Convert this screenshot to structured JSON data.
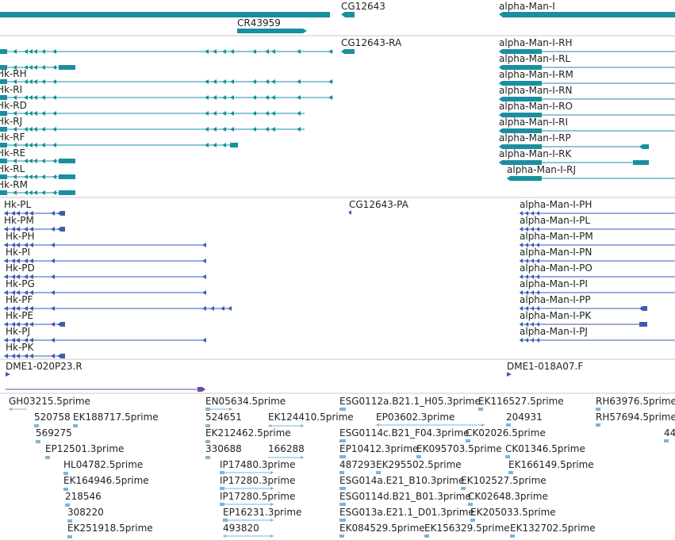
{
  "colors": {
    "gene": "#1a8f9f",
    "transcript": "#1a8f9f",
    "protein": "#3b5bb5",
    "clone": "#6b4aa8",
    "est": "#7fb4d6",
    "divider": "#c8c8c8",
    "text": "#222222"
  },
  "gene_track": {
    "genes": [
      "CG12643",
      "CR43959",
      "alpha-Man-I"
    ]
  },
  "transcript_track": {
    "left_labels": [
      "Hk-RH",
      "Hk-RI",
      "Hk-RD",
      "Hk-RJ",
      "Hk-RF",
      "Hk-RE",
      "Hk-RL",
      "Hk-RM"
    ],
    "center_label": "CG12643-RA",
    "right_labels": [
      "alpha-Man-I-RH",
      "alpha-Man-I-RL",
      "alpha-Man-I-RM",
      "alpha-Man-I-RN",
      "alpha-Man-I-RO",
      "alpha-Man-I-RI",
      "alpha-Man-I-RP",
      "alpha-Man-I-RK",
      "alpha-Man-I-RJ"
    ]
  },
  "protein_track": {
    "left_labels": [
      "Hk-PL",
      "Hk-PM",
      "Hk-PH",
      "Hk-PI",
      "Hk-PD",
      "Hk-PG",
      "Hk-PF",
      "Hk-PE",
      "Hk-PJ",
      "Hk-PK"
    ],
    "center_label": "CG12643-PA",
    "right_labels": [
      "alpha-Man-I-PH",
      "alpha-Man-I-PL",
      "alpha-Man-I-PM",
      "alpha-Man-I-PN",
      "alpha-Man-I-PO",
      "alpha-Man-I-PI",
      "alpha-Man-I-PP",
      "alpha-Man-I-PK",
      "alpha-Man-I-PJ"
    ]
  },
  "clone_track": {
    "labels": [
      "DME1-020P23.R",
      "DME1-018A07.F"
    ]
  },
  "est_track": {
    "col1": [
      "GH03215.5prime",
      "520758",
      "EK188717.5prime",
      "569275",
      "EP12501.3prime",
      "HL04782.5prime",
      "EK164946.5prime",
      "218546",
      "308220",
      "EK251918.5prime"
    ],
    "col2": [
      "EN05634.5prime",
      "524651",
      "EK124410.5prime",
      "EK212462.5prime",
      "330688",
      "166288",
      "IP17480.3prime",
      "IP17280.3prime",
      "IP17280.5prime",
      "EP16231.3prime",
      "493820"
    ],
    "col3": [
      "ESG0112a.B21.1_H05.3prime",
      "EK116527.5prime",
      "EP03602.3prime",
      "204931",
      "ESG0114c.B21_F04.3prime",
      "CK02026.5prime",
      "EP10412.3prime",
      "EK095703.5prime",
      "CK01346.5prime",
      "487293",
      "EK295502.5prime",
      "EK166149.5prime",
      "ESG014a.E21_B10.3prime",
      "EK102527.5prime",
      "ESG0114d.B21_B01.3prime",
      "CK02648.3prime",
      "ESG013a.E21.1_D01.3prime",
      "EK205033.5prime",
      "EK084529.5prime",
      "EK156329.5prime",
      "EK132702.5prime"
    ],
    "col4": [
      "RH63976.5prime",
      "RH57694.5prime",
      "44"
    ]
  }
}
